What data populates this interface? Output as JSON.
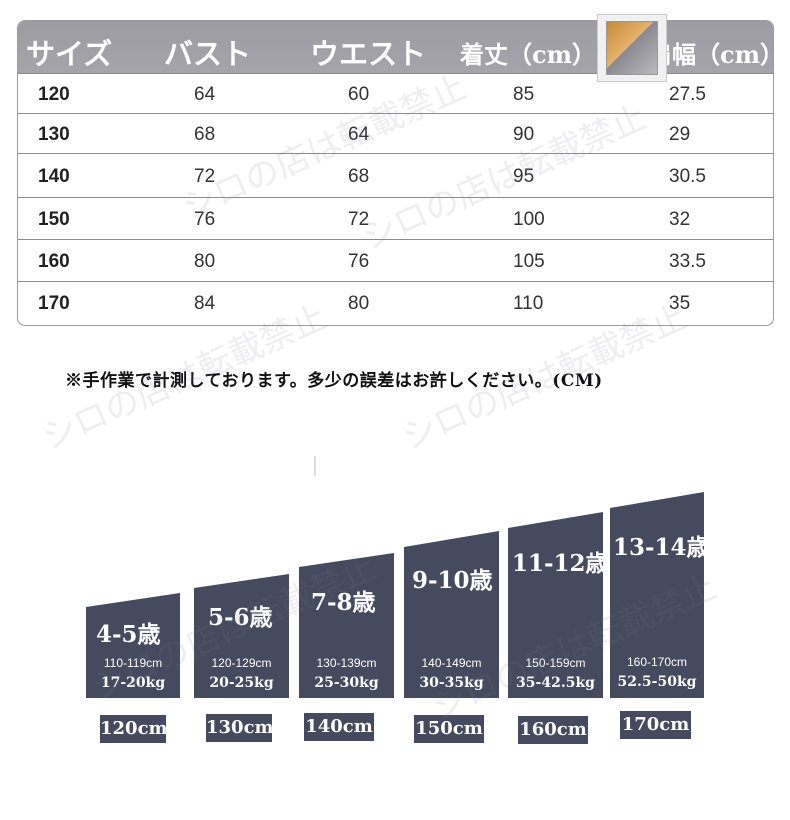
{
  "table": {
    "headers": [
      "サイズ",
      "バスト",
      "ウエスト",
      "着丈（cm）",
      "肩幅（cm）"
    ],
    "rows": [
      [
        "120",
        "64",
        "60",
        "85",
        "27.5"
      ],
      [
        "130",
        "68",
        "64",
        "90",
        "29"
      ],
      [
        "140",
        "72",
        "68",
        "95",
        "30.5"
      ],
      [
        "150",
        "76",
        "72",
        "100",
        "32"
      ],
      [
        "160",
        "80",
        "76",
        "105",
        "33.5"
      ],
      [
        "170",
        "84",
        "80",
        "110",
        "35"
      ]
    ]
  },
  "note": "※手作業で計測しております。多少の誤差はお許しください。(CM)",
  "size_guide": [
    {
      "age": "4-5歳",
      "height_range": "110-119cm",
      "weight_range": "17-20kg",
      "tag": "120cm"
    },
    {
      "age": "5-6歳",
      "height_range": "120-129cm",
      "weight_range": "20-25kg",
      "tag": "130cm"
    },
    {
      "age": "7-8歳",
      "height_range": "130-139cm",
      "weight_range": "25-30kg",
      "tag": "140cm"
    },
    {
      "age": "9-10歳",
      "height_range": "140-149cm",
      "weight_range": "30-35kg",
      "tag": "150cm"
    },
    {
      "age": "11-12歳",
      "height_range": "150-159cm",
      "weight_range": "35-42.5kg",
      "tag": "160cm"
    },
    {
      "age": "13-14歳",
      "height_range": "160-170cm",
      "weight_range": "52.5-50kg",
      "tag": "170cm"
    }
  ],
  "watermark": "シロの店は転載禁止",
  "colors": {
    "header_bg": "#a0a0a6",
    "block_bg": "#454a5e",
    "border": "#9a9aa0"
  }
}
